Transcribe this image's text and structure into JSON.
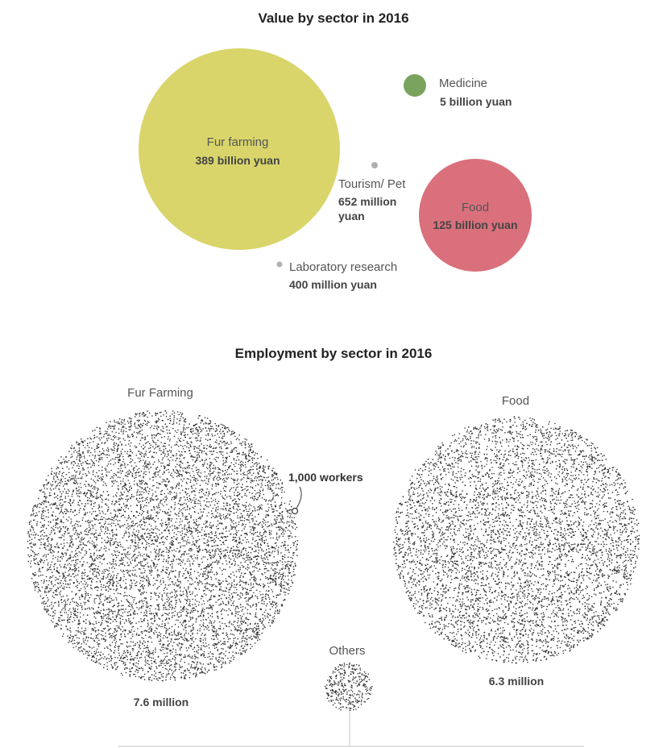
{
  "chart_data": [
    {
      "type": "bubble",
      "title": "Value by sector in 2016",
      "colors": {
        "fur": "#d9d56b",
        "medicine": "#7aa35e",
        "food": "#d9707b",
        "small": "#b0b0b0"
      },
      "items": [
        {
          "name": "Fur farming",
          "label": "389 billion yuan",
          "value_yuan": 389000000000
        },
        {
          "name": "Medicine",
          "label": "5 billion yuan",
          "value_yuan": 5000000000
        },
        {
          "name": "Tourism/ Pet",
          "label_lines": [
            "652 million",
            "yuan"
          ],
          "value_yuan": 652000000
        },
        {
          "name": "Food",
          "label": "125 billion yuan",
          "value_yuan": 125000000000
        },
        {
          "name": "Laboratory research",
          "label": "400 million yuan",
          "value_yuan": 400000000
        }
      ]
    },
    {
      "type": "dot-bubble",
      "title": "Employment by sector in 2016",
      "unit_note": "1,000 workers",
      "dot_color": "#333333",
      "items": [
        {
          "name": "Fur Farming",
          "label": "7.6 million",
          "workers": 7600000
        },
        {
          "name": "Food",
          "label": "6.3 million",
          "workers": 6300000
        },
        {
          "name": "Others",
          "label": "",
          "workers": null
        }
      ]
    }
  ]
}
